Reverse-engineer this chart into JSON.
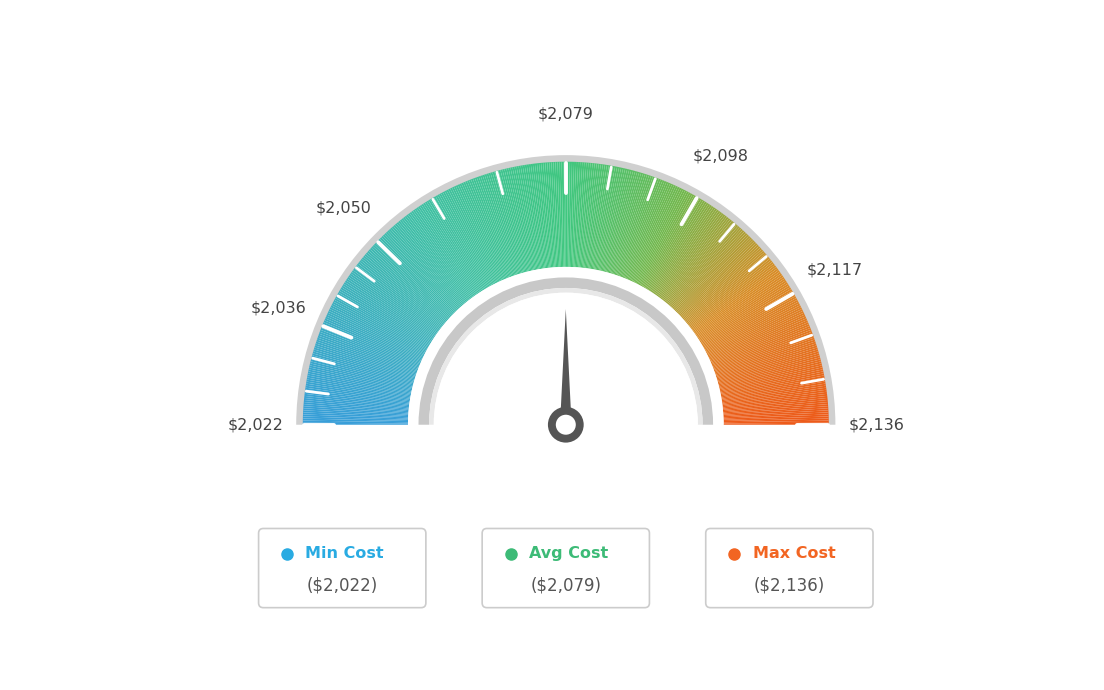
{
  "min_val": 2022,
  "avg_val": 2079,
  "max_val": 2136,
  "tick_labels": [
    "$2,022",
    "$2,036",
    "$2,050",
    "$2,079",
    "$2,098",
    "$2,117",
    "$2,136"
  ],
  "tick_values": [
    2022,
    2036,
    2050,
    2079,
    2098,
    2117,
    2136
  ],
  "legend_labels": [
    "Min Cost",
    "Avg Cost",
    "Max Cost"
  ],
  "legend_values": [
    "($2,022)",
    "($2,079)",
    "($2,136)"
  ],
  "legend_colors": [
    "#29abe2",
    "#3dbb77",
    "#f26522"
  ],
  "background_color": "#ffffff",
  "needle_value": 2079,
  "color_stops": [
    [
      0.0,
      [
        0.22,
        0.62,
        0.85
      ]
    ],
    [
      0.3,
      [
        0.25,
        0.75,
        0.65
      ]
    ],
    [
      0.5,
      [
        0.25,
        0.78,
        0.5
      ]
    ],
    [
      0.65,
      [
        0.45,
        0.72,
        0.3
      ]
    ],
    [
      0.8,
      [
        0.85,
        0.55,
        0.15
      ]
    ],
    [
      1.0,
      [
        0.93,
        0.35,
        0.1
      ]
    ]
  ]
}
